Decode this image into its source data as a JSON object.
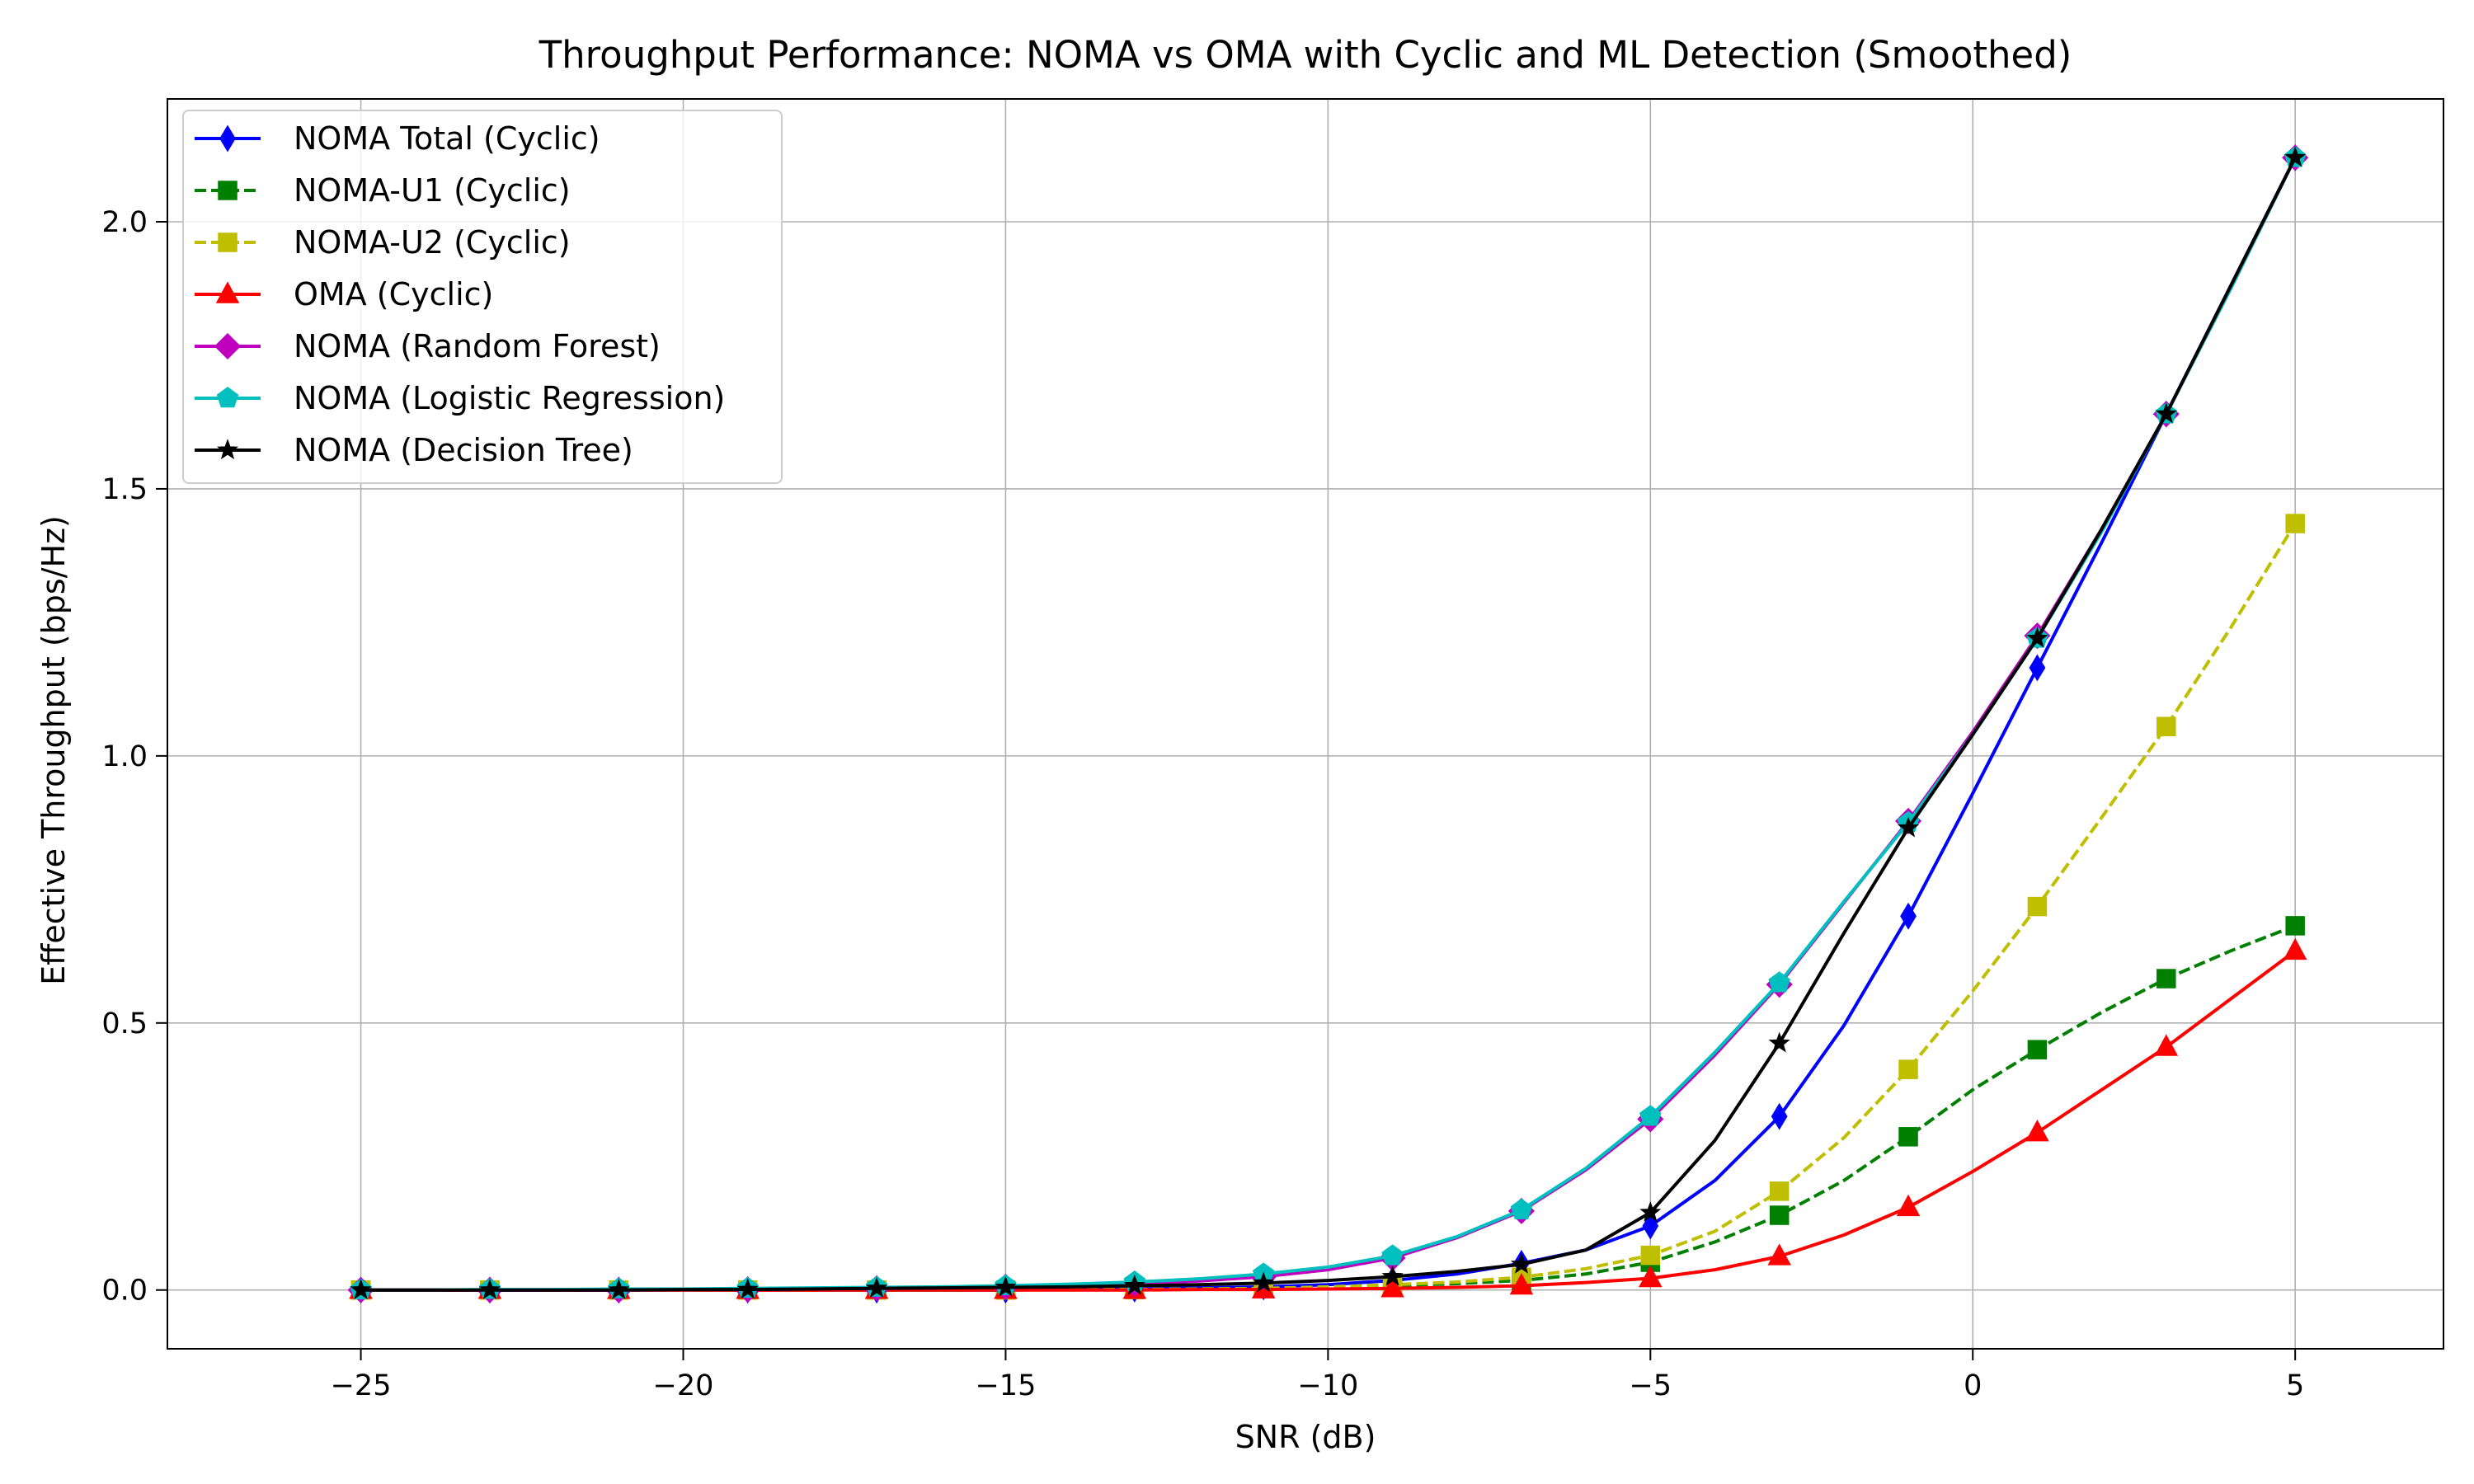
{
  "chart_data": {
    "type": "line",
    "title": "Throughput Performance: NOMA vs OMA with Cyclic and ML Detection (Smoothed)",
    "xlabel": "SNR (dB)",
    "ylabel": "Effective Throughput (bps/Hz)",
    "xlim": [
      -28,
      7.3
    ],
    "ylim": [
      -0.11,
      2.23
    ],
    "xticks": [
      -25,
      -20,
      -15,
      -10,
      -5,
      0,
      5
    ],
    "xtick_labels": [
      "−25",
      "−20",
      "−15",
      "−10",
      "−5",
      "0",
      "5"
    ],
    "yticks": [
      0.0,
      0.5,
      1.0,
      1.5,
      2.0
    ],
    "ytick_labels": [
      "0.0",
      "0.5",
      "1.0",
      "1.5",
      "2.0"
    ],
    "grid": true,
    "legend_position": "top-left",
    "series": [
      {
        "name": "NOMA Total (Cyclic)",
        "color": "#0000ff",
        "dash": "solid",
        "marker": "thin-diamond",
        "x": [
          -25,
          -24,
          -23,
          -22,
          -21,
          -20,
          -19,
          -18,
          -17,
          -16,
          -15,
          -14,
          -13,
          -12,
          -11,
          -10,
          -9,
          -8,
          -7,
          -6,
          -5,
          -4,
          -3,
          -2,
          -1,
          0,
          1,
          2,
          3,
          4,
          5
        ],
        "y": [
          0.0,
          0.0,
          0.0,
          0.0,
          0.0,
          0.0,
          0.0,
          0.0,
          0.0,
          0.0,
          0.0,
          0.001,
          0.002,
          0.004,
          0.006,
          0.01,
          0.018,
          0.03,
          0.05,
          0.075,
          0.12,
          0.205,
          0.325,
          0.495,
          0.7,
          0.93,
          1.165,
          1.4,
          1.64,
          1.88,
          2.12
        ],
        "marker_x": [
          -25,
          -23,
          -21,
          -19,
          -17,
          -15,
          -13,
          -11,
          -9,
          -7,
          -5,
          -3,
          -1,
          1,
          3,
          5
        ]
      },
      {
        "name": "NOMA-U1 (Cyclic)",
        "color": "#008000",
        "dash": "dashed",
        "marker": "square",
        "x": [
          -25,
          -24,
          -23,
          -22,
          -21,
          -20,
          -19,
          -18,
          -17,
          -16,
          -15,
          -14,
          -13,
          -12,
          -11,
          -10,
          -9,
          -8,
          -7,
          -6,
          -5,
          -4,
          -3,
          -2,
          -1,
          0,
          1,
          2,
          3,
          4,
          5
        ],
        "y": [
          0.0,
          0.0,
          0.0,
          0.0,
          0.0,
          0.0,
          0.0,
          0.0,
          0.0,
          0.0,
          0.0,
          0.001,
          0.001,
          0.002,
          0.003,
          0.005,
          0.008,
          0.012,
          0.018,
          0.03,
          0.052,
          0.09,
          0.14,
          0.205,
          0.287,
          0.375,
          0.45,
          0.52,
          0.583,
          0.635,
          0.682
        ],
        "marker_x": [
          -25,
          -23,
          -21,
          -19,
          -17,
          -15,
          -13,
          -11,
          -9,
          -7,
          -5,
          -3,
          -1,
          1,
          3,
          5
        ]
      },
      {
        "name": "NOMA-U2 (Cyclic)",
        "color": "#bfbf00",
        "dash": "dashed",
        "marker": "square",
        "x": [
          -25,
          -24,
          -23,
          -22,
          -21,
          -20,
          -19,
          -18,
          -17,
          -16,
          -15,
          -14,
          -13,
          -12,
          -11,
          -10,
          -9,
          -8,
          -7,
          -6,
          -5,
          -4,
          -3,
          -2,
          -1,
          0,
          1,
          2,
          3,
          4,
          5
        ],
        "y": [
          0.0,
          0.0,
          0.0,
          0.0,
          0.0,
          0.0,
          0.0,
          0.0,
          0.0,
          0.0,
          0.0,
          0.001,
          0.001,
          0.002,
          0.003,
          0.006,
          0.01,
          0.015,
          0.024,
          0.04,
          0.065,
          0.11,
          0.185,
          0.285,
          0.413,
          0.56,
          0.718,
          0.885,
          1.055,
          1.24,
          1.435
        ],
        "marker_x": [
          -25,
          -23,
          -21,
          -19,
          -17,
          -15,
          -13,
          -11,
          -9,
          -7,
          -5,
          -3,
          -1,
          1,
          3,
          5
        ]
      },
      {
        "name": "OMA (Cyclic)",
        "color": "#ff0000",
        "dash": "solid",
        "marker": "triangle",
        "x": [
          -25,
          -24,
          -23,
          -22,
          -21,
          -20,
          -19,
          -18,
          -17,
          -16,
          -15,
          -14,
          -13,
          -12,
          -11,
          -10,
          -9,
          -8,
          -7,
          -6,
          -5,
          -4,
          -3,
          -2,
          -1,
          0,
          1,
          2,
          3,
          4,
          5
        ],
        "y": [
          0.0,
          0.0,
          0.0,
          0.0,
          0.0,
          0.0,
          0.0,
          0.0,
          0.0,
          0.0,
          0.0,
          0.0,
          0.0,
          0.001,
          0.001,
          0.002,
          0.003,
          0.005,
          0.008,
          0.014,
          0.022,
          0.038,
          0.063,
          0.103,
          0.155,
          0.222,
          0.295,
          0.375,
          0.455,
          0.545,
          0.635
        ],
        "marker_x": [
          -25,
          -23,
          -21,
          -19,
          -17,
          -15,
          -13,
          -11,
          -9,
          -7,
          -5,
          -3,
          -1,
          1,
          3,
          5
        ]
      },
      {
        "name": "NOMA (Random Forest)",
        "color": "#bf00bf",
        "dash": "solid",
        "marker": "diamond",
        "x": [
          -25,
          -24,
          -23,
          -22,
          -21,
          -20,
          -19,
          -18,
          -17,
          -16,
          -15,
          -14,
          -13,
          -12,
          -11,
          -10,
          -9,
          -8,
          -7,
          -6,
          -5,
          -4,
          -3,
          -2,
          -1,
          0,
          1,
          2,
          3,
          4,
          5
        ],
        "y": [
          0.0,
          0.0,
          0.0,
          0.0,
          0.0,
          0.001,
          0.001,
          0.002,
          0.003,
          0.004,
          0.006,
          0.008,
          0.012,
          0.017,
          0.025,
          0.038,
          0.06,
          0.098,
          0.148,
          0.225,
          0.32,
          0.44,
          0.572,
          0.725,
          0.878,
          1.045,
          1.225,
          1.425,
          1.64,
          1.875,
          2.12
        ],
        "marker_x": [
          -25,
          -23,
          -21,
          -19,
          -17,
          -15,
          -13,
          -11,
          -9,
          -7,
          -5,
          -3,
          -1,
          1,
          3,
          5
        ]
      },
      {
        "name": "NOMA (Logistic Regression)",
        "color": "#00bfbf",
        "dash": "solid",
        "marker": "pentagon",
        "x": [
          -25,
          -24,
          -23,
          -22,
          -21,
          -20,
          -19,
          -18,
          -17,
          -16,
          -15,
          -14,
          -13,
          -12,
          -11,
          -10,
          -9,
          -8,
          -7,
          -6,
          -5,
          -4,
          -3,
          -2,
          -1,
          0,
          1,
          2,
          3,
          4,
          5
        ],
        "y": [
          0.0,
          0.0,
          0.001,
          0.001,
          0.002,
          0.002,
          0.003,
          0.004,
          0.005,
          0.006,
          0.008,
          0.011,
          0.015,
          0.021,
          0.03,
          0.043,
          0.064,
          0.1,
          0.15,
          0.228,
          0.325,
          0.445,
          0.575,
          0.727,
          0.875,
          1.04,
          1.22,
          1.42,
          1.64,
          1.875,
          2.12
        ],
        "marker_x": [
          -25,
          -23,
          -21,
          -19,
          -17,
          -15,
          -13,
          -11,
          -9,
          -7,
          -5,
          -3,
          -1,
          1,
          3,
          5
        ]
      },
      {
        "name": "NOMA (Decision Tree)",
        "color": "#000000",
        "dash": "solid",
        "marker": "star",
        "x": [
          -25,
          -24,
          -23,
          -22,
          -21,
          -20,
          -19,
          -18,
          -17,
          -16,
          -15,
          -14,
          -13,
          -12,
          -11,
          -10,
          -9,
          -8,
          -7,
          -6,
          -5,
          -4,
          -3,
          -2,
          -1,
          0,
          1,
          2,
          3,
          4,
          5
        ],
        "y": [
          0.0,
          0.0,
          0.0,
          0.0,
          0.0,
          0.001,
          0.001,
          0.002,
          0.003,
          0.004,
          0.005,
          0.006,
          0.008,
          0.01,
          0.013,
          0.018,
          0.025,
          0.035,
          0.048,
          0.075,
          0.145,
          0.28,
          0.462,
          0.668,
          0.865,
          1.04,
          1.22,
          1.425,
          1.64,
          1.88,
          2.12
        ],
        "marker_x": [
          -25,
          -23,
          -21,
          -19,
          -17,
          -15,
          -13,
          -11,
          -9,
          -7,
          -5,
          -3,
          -1,
          1,
          3,
          5
        ]
      }
    ]
  }
}
